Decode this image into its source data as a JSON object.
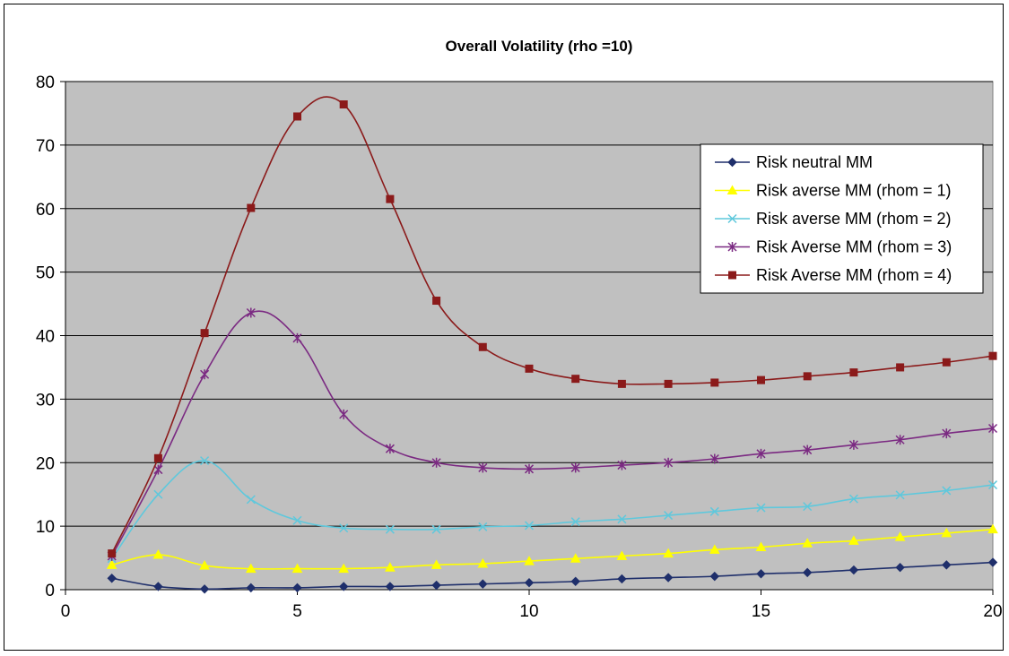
{
  "chart_data": {
    "type": "line",
    "title": "Overall Volatility (rho =10)",
    "xlabel": "",
    "ylabel": "",
    "xlim": [
      0,
      20
    ],
    "ylim": [
      0,
      80
    ],
    "xticks": [
      0,
      5,
      10,
      15,
      20
    ],
    "yticks": [
      0,
      10,
      20,
      30,
      40,
      50,
      60,
      70,
      80
    ],
    "grid": "horizontal",
    "plot_background": "#c0c0c0",
    "legend_position": "right",
    "x": [
      1,
      2,
      3,
      4,
      5,
      6,
      7,
      8,
      9,
      10,
      11,
      12,
      13,
      14,
      15,
      16,
      17,
      18,
      19,
      20
    ],
    "series": [
      {
        "name": "Risk neutral MM",
        "color": "#1f2f6b",
        "marker": "diamond",
        "values": [
          1.8,
          0.5,
          0.1,
          0.3,
          0.3,
          0.5,
          0.5,
          0.7,
          0.9,
          1.1,
          1.3,
          1.7,
          1.9,
          2.1,
          2.5,
          2.7,
          3.1,
          3.5,
          3.9,
          4.3
        ]
      },
      {
        "name": "Risk averse MM (rhom = 1)",
        "color": "#ffff00",
        "marker": "triangle",
        "values": [
          3.9,
          5.5,
          3.8,
          3.3,
          3.3,
          3.3,
          3.5,
          3.9,
          4.1,
          4.5,
          4.9,
          5.3,
          5.7,
          6.3,
          6.7,
          7.3,
          7.7,
          8.3,
          8.9,
          9.5
        ]
      },
      {
        "name": "Risk averse MM (rhom = 2)",
        "color": "#5fc8dc",
        "marker": "x",
        "values": [
          4.9,
          15.0,
          20.3,
          14.2,
          10.9,
          9.7,
          9.5,
          9.5,
          9.9,
          10.1,
          10.7,
          11.1,
          11.7,
          12.3,
          12.9,
          13.1,
          14.3,
          14.9,
          15.6,
          16.5
        ]
      },
      {
        "name": "Risk Averse MM (rhom = 3)",
        "color": "#7b2a82",
        "marker": "star",
        "values": [
          5.3,
          18.9,
          33.9,
          43.6,
          39.6,
          27.6,
          22.2,
          20.0,
          19.2,
          19.0,
          19.2,
          19.6,
          20.0,
          20.6,
          21.4,
          22.0,
          22.8,
          23.6,
          24.6,
          25.4
        ]
      },
      {
        "name": "Risk Averse MM (rhom = 4)",
        "color": "#8b1a1a",
        "marker": "square",
        "values": [
          5.7,
          20.7,
          40.4,
          60.1,
          74.5,
          76.4,
          61.5,
          45.5,
          38.2,
          34.8,
          33.2,
          32.4,
          32.4,
          32.6,
          33.0,
          33.6,
          34.2,
          35.0,
          35.8,
          36.8
        ]
      }
    ]
  }
}
